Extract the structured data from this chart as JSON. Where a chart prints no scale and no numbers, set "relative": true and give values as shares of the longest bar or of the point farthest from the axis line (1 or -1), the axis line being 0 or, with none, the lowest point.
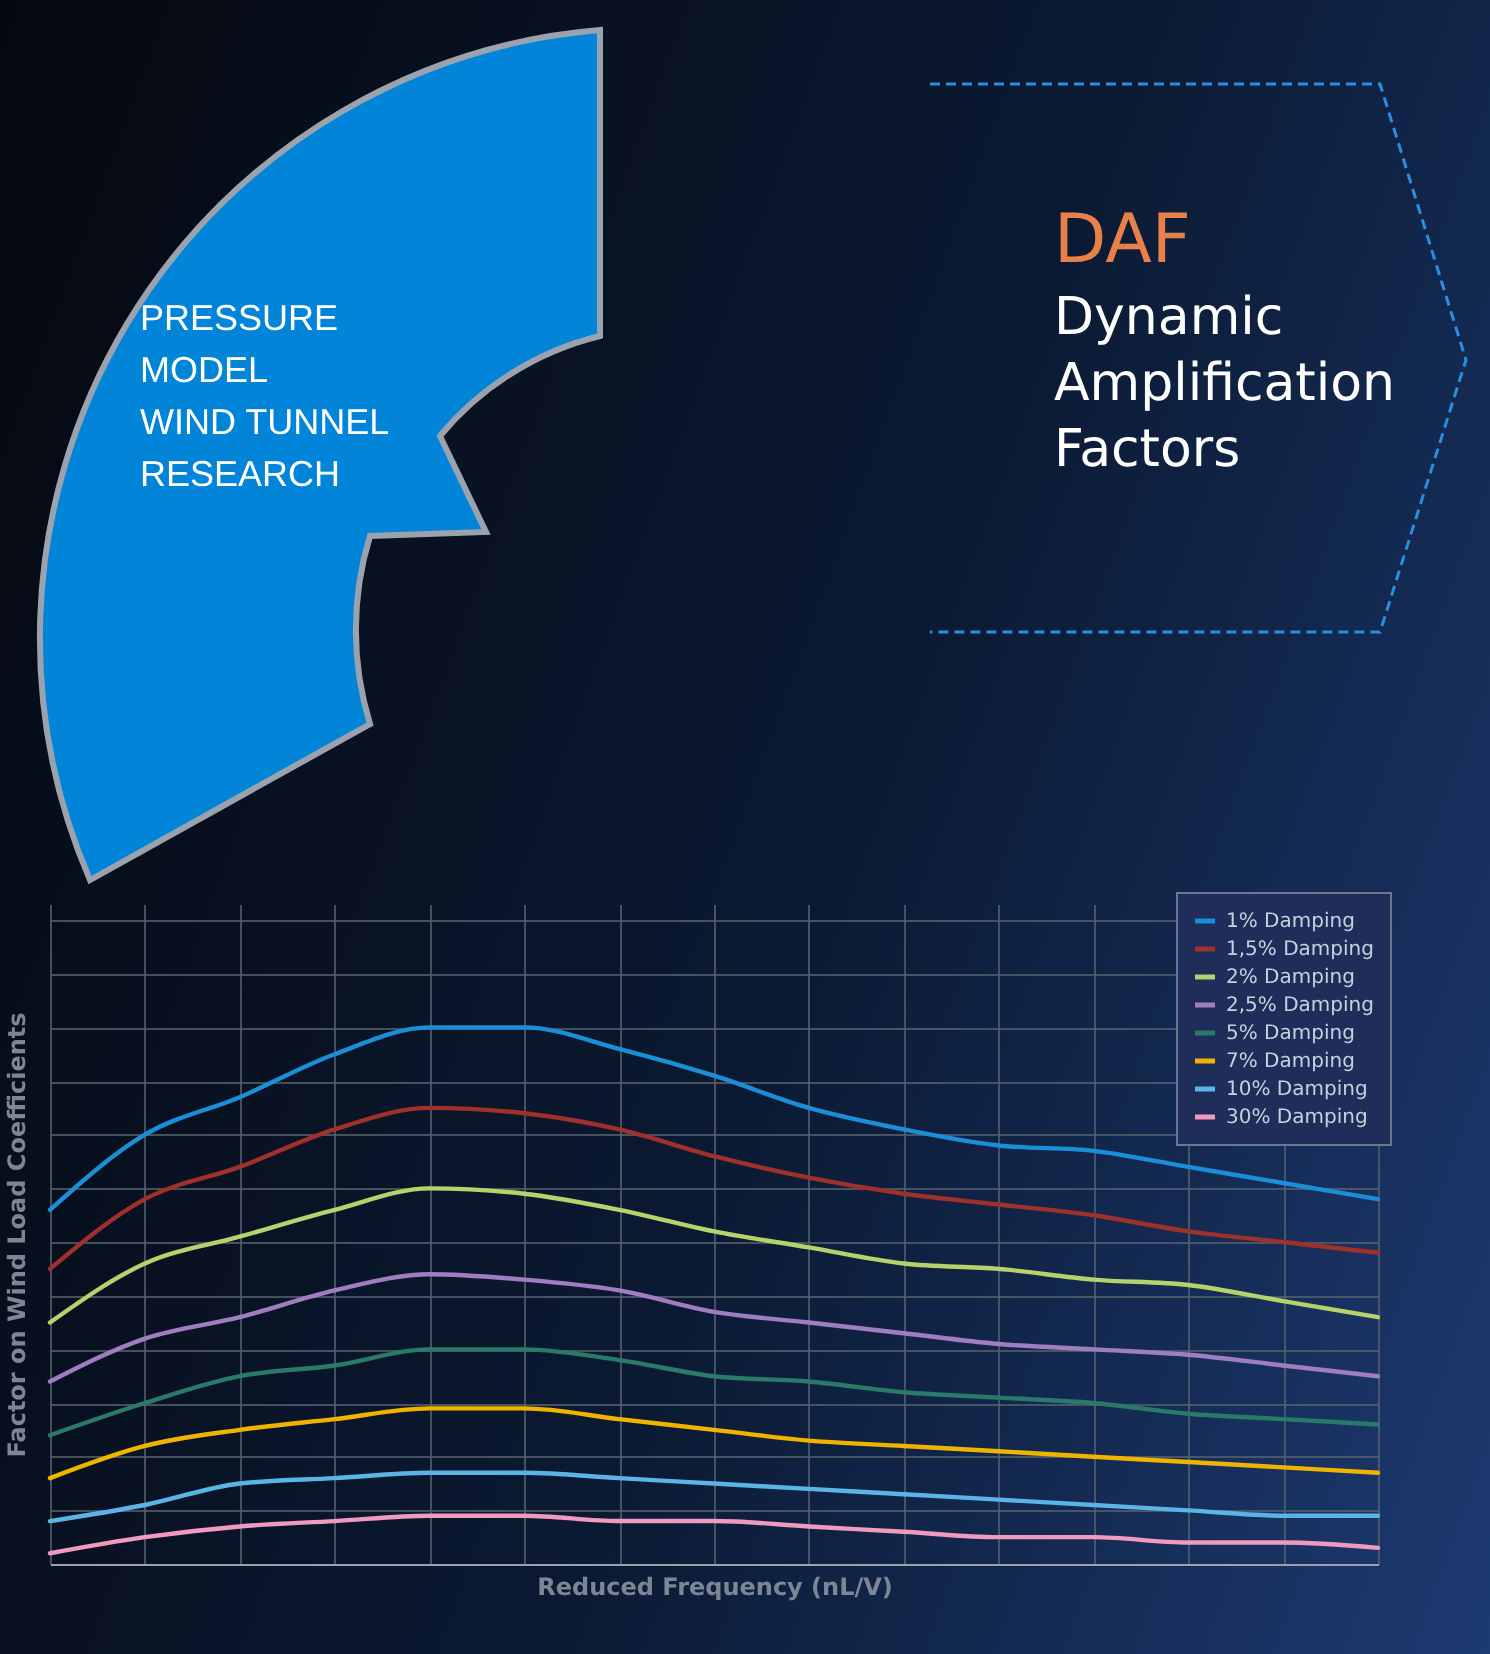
{
  "chart_data": {
    "type": "line",
    "title": "DAF",
    "subtitle": "Dynamic Amplification Factors",
    "annotations": [
      "PRESSURE",
      "MODEL",
      "WIND TUNNEL",
      "RESEARCH"
    ],
    "xlabel": "Reduced Frequency (nL/V)",
    "ylabel": "Factor on Wind Load Coefficients",
    "relative": true,
    "grid": true,
    "legend": "top right",
    "marker": "none",
    "line_style": "solid",
    "categories": [
      null,
      null,
      null,
      null,
      null,
      null,
      null,
      null,
      null,
      null,
      null,
      null,
      null,
      null,
      null
    ],
    "series": [
      {
        "name": "1% Damping",
        "color": "#1a8fd8",
        "values": [
          0.66,
          0.8,
          0.87,
          0.95,
          1,
          1,
          0.96,
          0.91,
          0.85,
          0.81,
          0.78,
          0.77,
          0.74,
          0.71,
          0.68
        ]
      },
      {
        "name": "1,5% Damping",
        "color": "#a0302a",
        "values": [
          0.55,
          0.68,
          0.74,
          0.81,
          0.85,
          0.84,
          0.81,
          0.76,
          0.72,
          0.69,
          0.67,
          0.65,
          0.62,
          0.6,
          0.58
        ]
      },
      {
        "name": "2% Damping",
        "color": "#b5d36a",
        "values": [
          0.45,
          0.56,
          0.61,
          0.66,
          0.7,
          0.69,
          0.66,
          0.62,
          0.59,
          0.56,
          0.55,
          0.53,
          0.52,
          0.49,
          0.46
        ]
      },
      {
        "name": "2,5% Damping",
        "color": "#a07cc0",
        "values": [
          0.34,
          0.42,
          0.46,
          0.51,
          0.54,
          0.53,
          0.51,
          0.47,
          0.45,
          0.43,
          0.41,
          0.4,
          0.39,
          0.37,
          0.35
        ]
      },
      {
        "name": "5% Damping",
        "color": "#2a7a6a",
        "values": [
          0.24,
          0.3,
          0.35,
          0.37,
          0.4,
          0.4,
          0.38,
          0.35,
          0.34,
          0.32,
          0.31,
          0.3,
          0.28,
          0.27,
          0.26
        ]
      },
      {
        "name": "7% Damping",
        "color": "#f0b400",
        "values": [
          0.16,
          0.22,
          0.25,
          0.27,
          0.29,
          0.29,
          0.27,
          0.25,
          0.23,
          0.22,
          0.21,
          0.2,
          0.19,
          0.18,
          0.17
        ]
      },
      {
        "name": "10% Damping",
        "color": "#5ab4e6",
        "values": [
          0.08,
          0.11,
          0.15,
          0.16,
          0.17,
          0.17,
          0.16,
          0.15,
          0.14,
          0.13,
          0.12,
          0.11,
          0.1,
          0.09,
          0.09
        ]
      },
      {
        "name": "30% Damping",
        "color": "#f09ac0",
        "values": [
          0.02,
          0.05,
          0.07,
          0.08,
          0.09,
          0.09,
          0.08,
          0.08,
          0.07,
          0.06,
          0.05,
          0.05,
          0.04,
          0.04,
          0.03
        ]
      }
    ]
  }
}
